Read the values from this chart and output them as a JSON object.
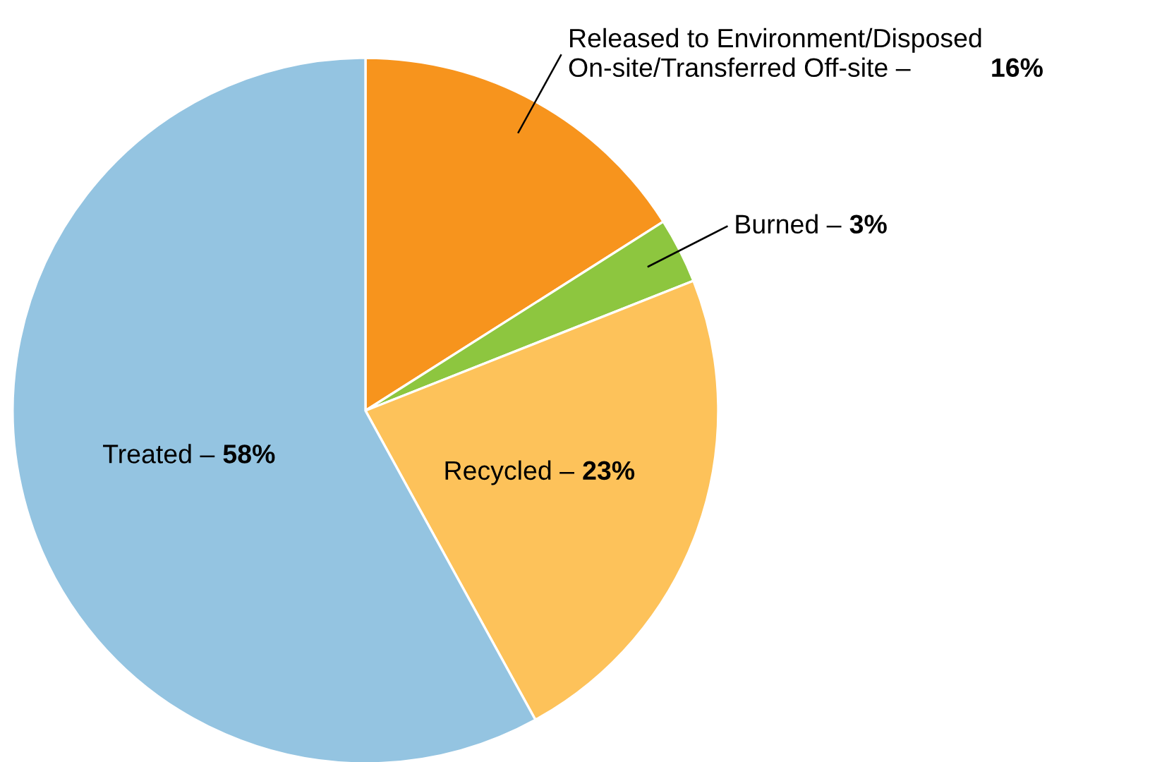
{
  "chart_data": {
    "type": "pie",
    "categories": [
      "Released to Environment/Disposed\nOn-site/Transferred Off-site –",
      "Burned –",
      "Recycled –",
      "Treated –"
    ],
    "values": [
      16,
      3,
      23,
      58
    ],
    "colors": [
      "#f7941d",
      "#8dc63f",
      "#fdc25a",
      "#94c4e1"
    ],
    "value_labels": [
      "16%",
      "3%",
      "23%",
      "58%"
    ]
  }
}
